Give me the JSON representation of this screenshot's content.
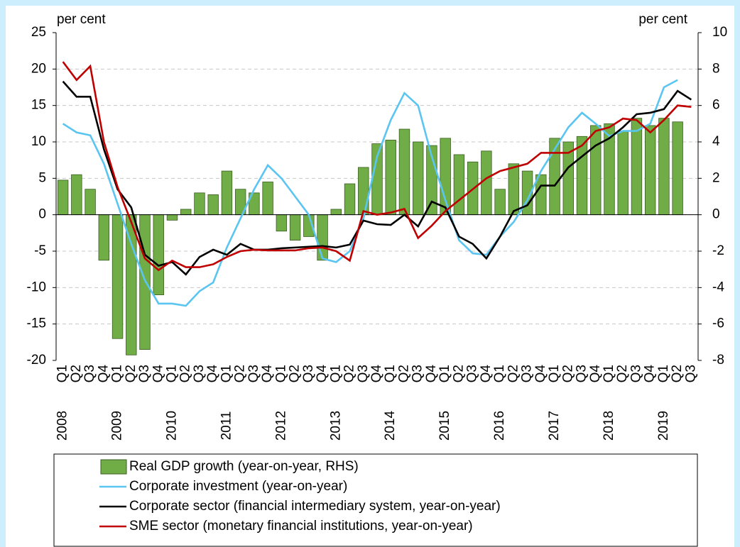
{
  "chart_data": {
    "type": "bar_line",
    "y_label": "per cent",
    "y2_label": "per cent",
    "categories": [
      "Q1",
      "Q2",
      "Q3",
      "Q4",
      "Q1",
      "Q2",
      "Q3",
      "Q4",
      "Q1",
      "Q2",
      "Q3",
      "Q4",
      "Q1",
      "Q2",
      "Q3",
      "Q4",
      "Q1",
      "Q2",
      "Q3",
      "Q4",
      "Q1",
      "Q2",
      "Q3",
      "Q4",
      "Q1",
      "Q2",
      "Q3",
      "Q4",
      "Q1",
      "Q2",
      "Q3",
      "Q4",
      "Q1",
      "Q2",
      "Q3",
      "Q4",
      "Q1",
      "Q2",
      "Q3",
      "Q4",
      "Q1",
      "Q2",
      "Q3",
      "Q4",
      "Q1",
      "Q2",
      "Q3"
    ],
    "years": [
      "2008",
      "2009",
      "2010",
      "2011",
      "2012",
      "2013",
      "2014",
      "2015",
      "2016",
      "2017",
      "2018",
      "2019"
    ],
    "ylim": [
      -20,
      25
    ],
    "yticks": [
      -20,
      -15,
      -10,
      -5,
      0,
      5,
      10,
      15,
      20,
      25
    ],
    "y2lim": [
      -8,
      10
    ],
    "y2ticks": [
      -8,
      -6,
      -4,
      -2,
      0,
      2,
      4,
      6,
      8,
      10
    ],
    "grid": true,
    "series": [
      {
        "name": "Real GDP growth (year-on-year, RHS)",
        "kind": "bar",
        "axis": "y2",
        "color": "#70ad47",
        "values": [
          1.9,
          2.2,
          1.4,
          -2.5,
          -6.8,
          -7.7,
          -7.4,
          -4.4,
          -0.3,
          0.3,
          1.2,
          1.1,
          2.4,
          1.4,
          1.2,
          1.8,
          -0.9,
          -1.4,
          -1.2,
          -2.5,
          0.3,
          1.7,
          2.6,
          3.9,
          4.1,
          4.7,
          4.0,
          3.8,
          4.2,
          3.3,
          2.9,
          3.5,
          1.4,
          2.8,
          2.4,
          2.2,
          4.2,
          4.0,
          4.3,
          4.9,
          5.0,
          4.6,
          5.3,
          4.9,
          5.3,
          5.1,
          null
        ]
      },
      {
        "name": "Corporate investment (year-on-year)",
        "kind": "line",
        "color": "#5bc5f2",
        "values": [
          12.5,
          11.3,
          10.9,
          7,
          1.5,
          -4,
          -9,
          -12.2,
          -12.2,
          -12.5,
          -10.5,
          -9.3,
          -4.5,
          -0.5,
          3.5,
          6.8,
          5,
          2.5,
          0,
          -6,
          -6.5,
          -5,
          -0.5,
          8,
          13,
          16.7,
          15,
          8,
          2,
          -3.5,
          -5.3,
          -5.5,
          -3,
          -1,
          2,
          6,
          9,
          12,
          14,
          12.5,
          10.8,
          11.5,
          11.5,
          12.5,
          17.5,
          18.5,
          null
        ]
      },
      {
        "name": "Corporate sector (financial intermediary system, year-on-year)",
        "kind": "line",
        "color": "#000000",
        "values": [
          18.3,
          16.2,
          16.2,
          9,
          3.5,
          1,
          -5.5,
          -7,
          -6.5,
          -8.2,
          -5.8,
          -4.8,
          -5.5,
          -4,
          -4.8,
          -4.8,
          -4.6,
          -4.5,
          -4.4,
          -4.3,
          -4.5,
          -4.1,
          -0.8,
          -1.3,
          -1.4,
          0,
          -1.6,
          1.8,
          1,
          -3,
          -4,
          -6,
          -3,
          0.5,
          1.3,
          4,
          4,
          6.5,
          8,
          9.5,
          10.5,
          12,
          13.8,
          14,
          14.5,
          17,
          15.8
        ]
      },
      {
        "name": "SME sector (monetary financial institutions, year-on-year)",
        "kind": "line",
        "color": "#c00000",
        "values": [
          21,
          18.5,
          20.4,
          10,
          3.8,
          -1,
          -6,
          -7.6,
          -6.3,
          -7.2,
          -7.2,
          -6.8,
          -5.8,
          -5,
          -4.8,
          -4.9,
          -4.9,
          -4.9,
          -4.6,
          -4.5,
          -5,
          -6.3,
          0.5,
          0,
          0.3,
          0.8,
          -3.2,
          -1.5,
          0.5,
          2,
          3.5,
          5,
          6,
          6.5,
          7,
          8.5,
          8.5,
          8.5,
          9.5,
          11.5,
          12,
          13.2,
          13,
          11.3,
          13,
          15,
          14.8
        ]
      }
    ]
  }
}
